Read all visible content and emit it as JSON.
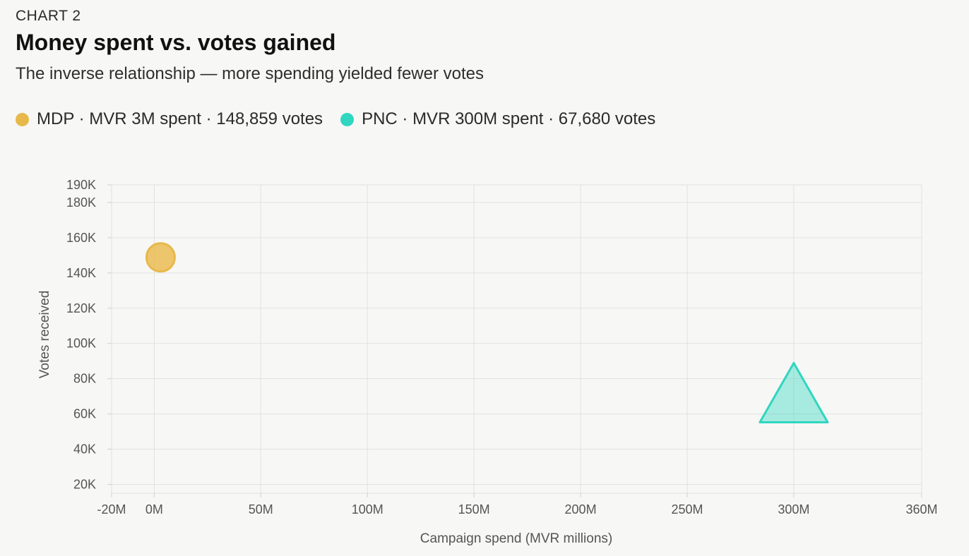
{
  "header": {
    "kicker": "CHART 2",
    "title": "Money spent vs. votes gained",
    "subtitle": "The inverse relationship — more spending yielded fewer votes"
  },
  "legend": [
    {
      "label": "MDP · MVR 3M spent · 148,859 votes",
      "color": "#e8b84a"
    },
    {
      "label": "PNC · MVR 300M spent · 67,680 votes",
      "color": "#2fd6c0"
    }
  ],
  "chart_data": {
    "type": "scatter",
    "xlabel": "Campaign spend (MVR millions)",
    "ylabel": "Votes received",
    "xlim": [
      -20,
      360
    ],
    "ylim": [
      15000,
      190000
    ],
    "x_ticks": [
      -20,
      0,
      50,
      100,
      150,
      200,
      250,
      300,
      360
    ],
    "x_tick_labels": [
      "-20M",
      "0M",
      "50M",
      "100M",
      "150M",
      "200M",
      "250M",
      "300M",
      "360M"
    ],
    "y_ticks": [
      20000,
      40000,
      60000,
      80000,
      100000,
      120000,
      140000,
      160000,
      180000,
      190000
    ],
    "y_tick_labels": [
      "20K",
      "40K",
      "60K",
      "80K",
      "100K",
      "120K",
      "140K",
      "160K",
      "180K",
      "190K"
    ],
    "grid": true,
    "series": [
      {
        "name": "MDP",
        "x": 3,
        "y": 148859,
        "shape": "circle",
        "color": "#e8b84a"
      },
      {
        "name": "PNC",
        "x": 300,
        "y": 67680,
        "shape": "triangle",
        "color": "#2fd6c0"
      }
    ]
  }
}
